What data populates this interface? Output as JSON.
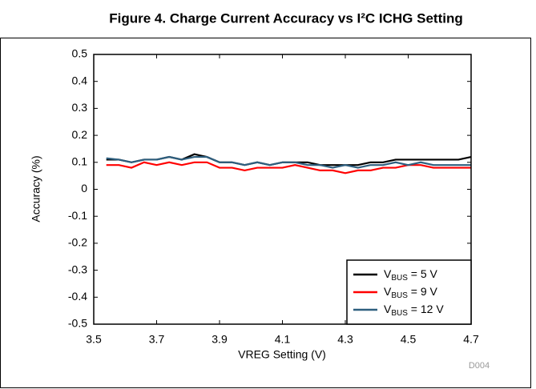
{
  "chart_data": {
    "type": "line",
    "title": "Figure 4. Charge Current Accuracy vs I²C ICHG Setting",
    "x_label": "VREG Setting (V)",
    "y_label": "Accuracy (%)",
    "annotation": "D004",
    "x": [
      3.54,
      3.58,
      3.62,
      3.66,
      3.7,
      3.74,
      3.78,
      3.82,
      3.86,
      3.9,
      3.94,
      3.98,
      4.02,
      4.06,
      4.1,
      4.14,
      4.18,
      4.22,
      4.26,
      4.3,
      4.34,
      4.38,
      4.42,
      4.46,
      4.5,
      4.54,
      4.58,
      4.62,
      4.66,
      4.7
    ],
    "series": [
      {
        "name": "VBUS = 5 V",
        "color": "#000000",
        "values": [
          0.11,
          0.11,
          0.1,
          0.11,
          0.11,
          0.12,
          0.11,
          0.13,
          0.12,
          0.1,
          0.1,
          0.09,
          0.1,
          0.09,
          0.1,
          0.1,
          0.1,
          0.09,
          0.09,
          0.09,
          0.09,
          0.1,
          0.1,
          0.11,
          0.11,
          0.11,
          0.11,
          0.11,
          0.11,
          0.12
        ]
      },
      {
        "name": "VBUS = 9 V",
        "color": "#ff0000",
        "values": [
          0.09,
          0.09,
          0.08,
          0.1,
          0.09,
          0.1,
          0.09,
          0.1,
          0.1,
          0.08,
          0.08,
          0.07,
          0.08,
          0.08,
          0.08,
          0.09,
          0.08,
          0.07,
          0.07,
          0.06,
          0.07,
          0.07,
          0.08,
          0.08,
          0.09,
          0.09,
          0.08,
          0.08,
          0.08,
          0.08
        ]
      },
      {
        "name": "VBUS = 12 V",
        "color": "#2e5f7f",
        "values": [
          0.115,
          0.11,
          0.1,
          0.11,
          0.11,
          0.12,
          0.11,
          0.12,
          0.12,
          0.1,
          0.1,
          0.09,
          0.1,
          0.09,
          0.1,
          0.1,
          0.09,
          0.09,
          0.08,
          0.09,
          0.08,
          0.09,
          0.09,
          0.1,
          0.09,
          0.1,
          0.09,
          0.09,
          0.09,
          0.09
        ]
      }
    ],
    "xlim": [
      3.5,
      4.7
    ],
    "xticks": [
      3.5,
      3.7,
      3.9,
      4.1,
      4.3,
      4.5,
      4.7
    ],
    "ylim": [
      -0.5,
      0.5
    ],
    "yticks": [
      0.5,
      0.4,
      0.3,
      0.2,
      0.1,
      0,
      -0.1,
      -0.2,
      -0.3,
      -0.4,
      -0.5
    ],
    "grid": false,
    "legend": "lower right"
  }
}
